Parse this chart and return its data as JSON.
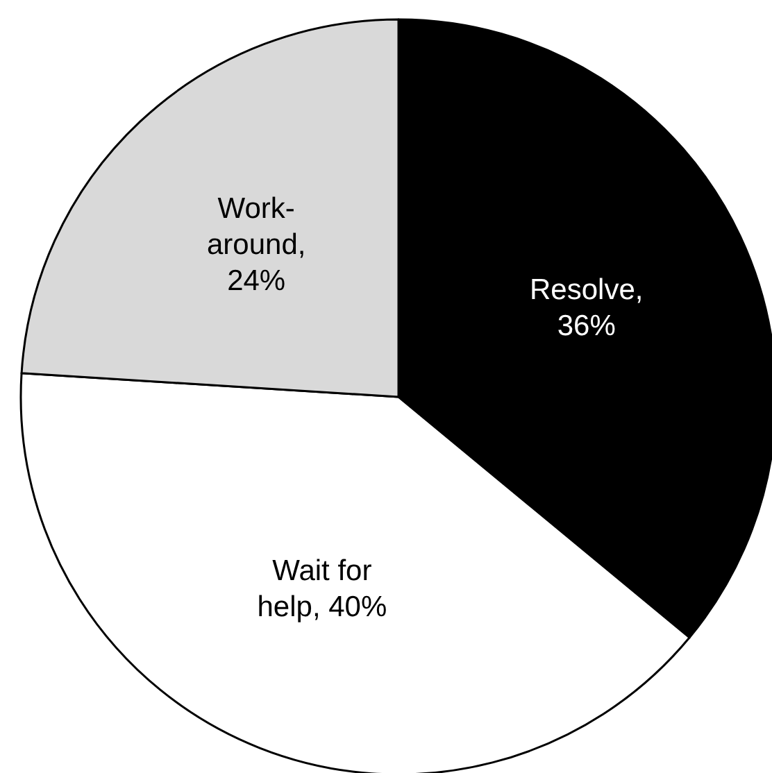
{
  "chart_data": {
    "type": "pie",
    "categories": [
      "Resolve, 36%",
      "Wait for help, 40%",
      "Work-around, 24%"
    ],
    "values": [
      36,
      40,
      24
    ],
    "colors": [
      "#000000",
      "#ffffff",
      "#d9d9d9"
    ]
  }
}
